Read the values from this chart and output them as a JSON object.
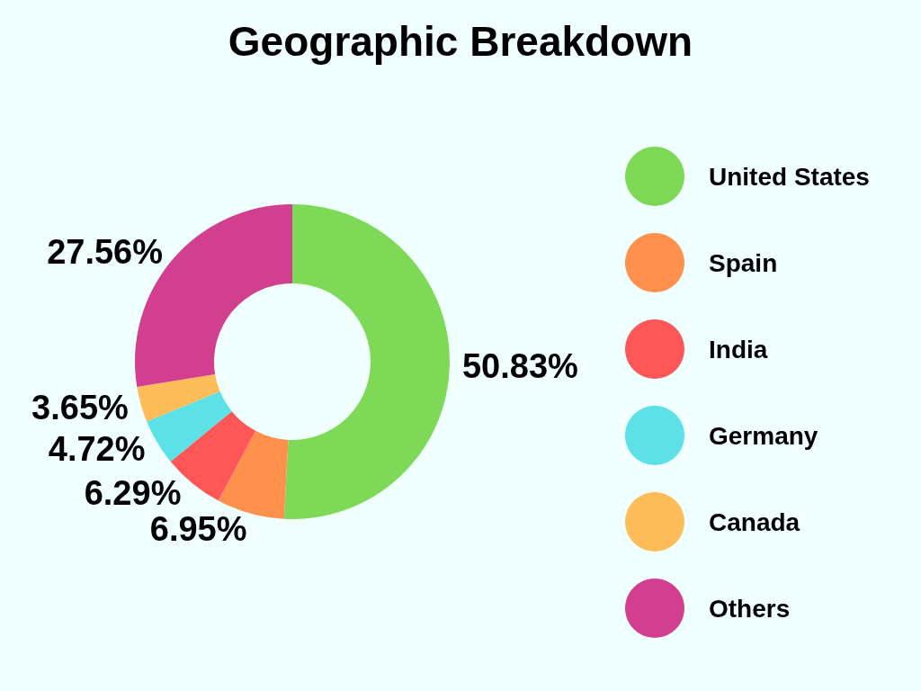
{
  "chart_data": {
    "type": "donut",
    "title": "Geographic Breakdown",
    "categories": [
      "United States",
      "Spain",
      "India",
      "Germany",
      "Canada",
      "Others"
    ],
    "values": [
      50.83,
      6.95,
      6.29,
      4.72,
      3.65,
      27.56
    ],
    "colors": [
      "#7ed957",
      "#ff914d",
      "#ff5757",
      "#5ce1e6",
      "#ffbd59",
      "#d33f8f"
    ],
    "value_labels": [
      "50.83%",
      "6.95%",
      "6.29%",
      "4.72%",
      "3.65%",
      "27.56%"
    ],
    "legend": "right"
  }
}
